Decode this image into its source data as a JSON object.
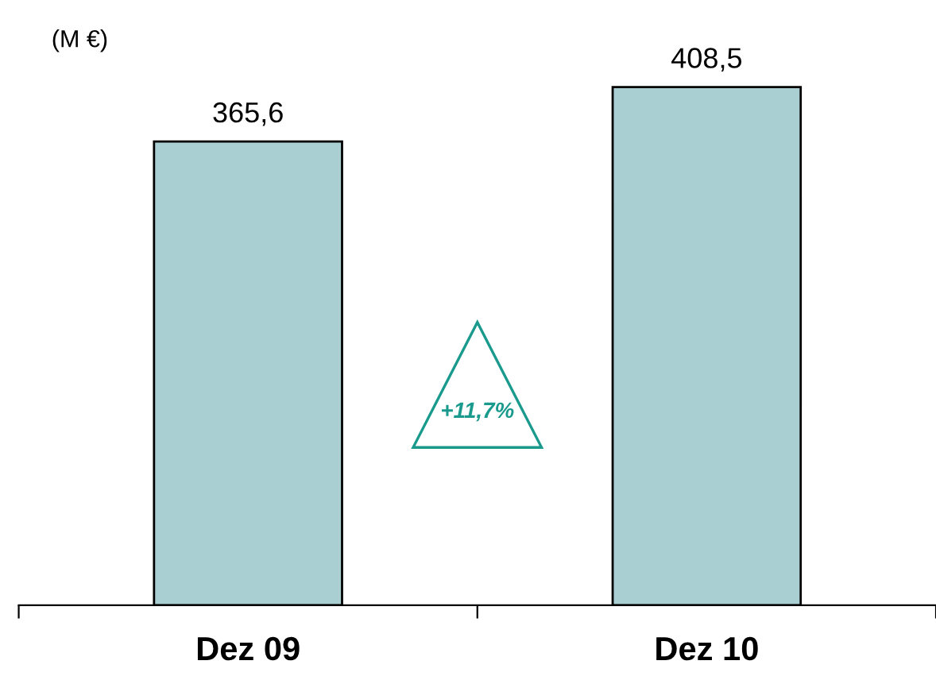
{
  "chart_data": {
    "type": "bar",
    "ylabel": "(M €)",
    "categories": [
      "Dez 09",
      "Dez 10"
    ],
    "values": [
      365.6,
      408.5
    ],
    "value_labels": [
      "365,6",
      "408,5"
    ],
    "color": "#a9cfd2",
    "annotations": [
      "+11,7%"
    ]
  }
}
